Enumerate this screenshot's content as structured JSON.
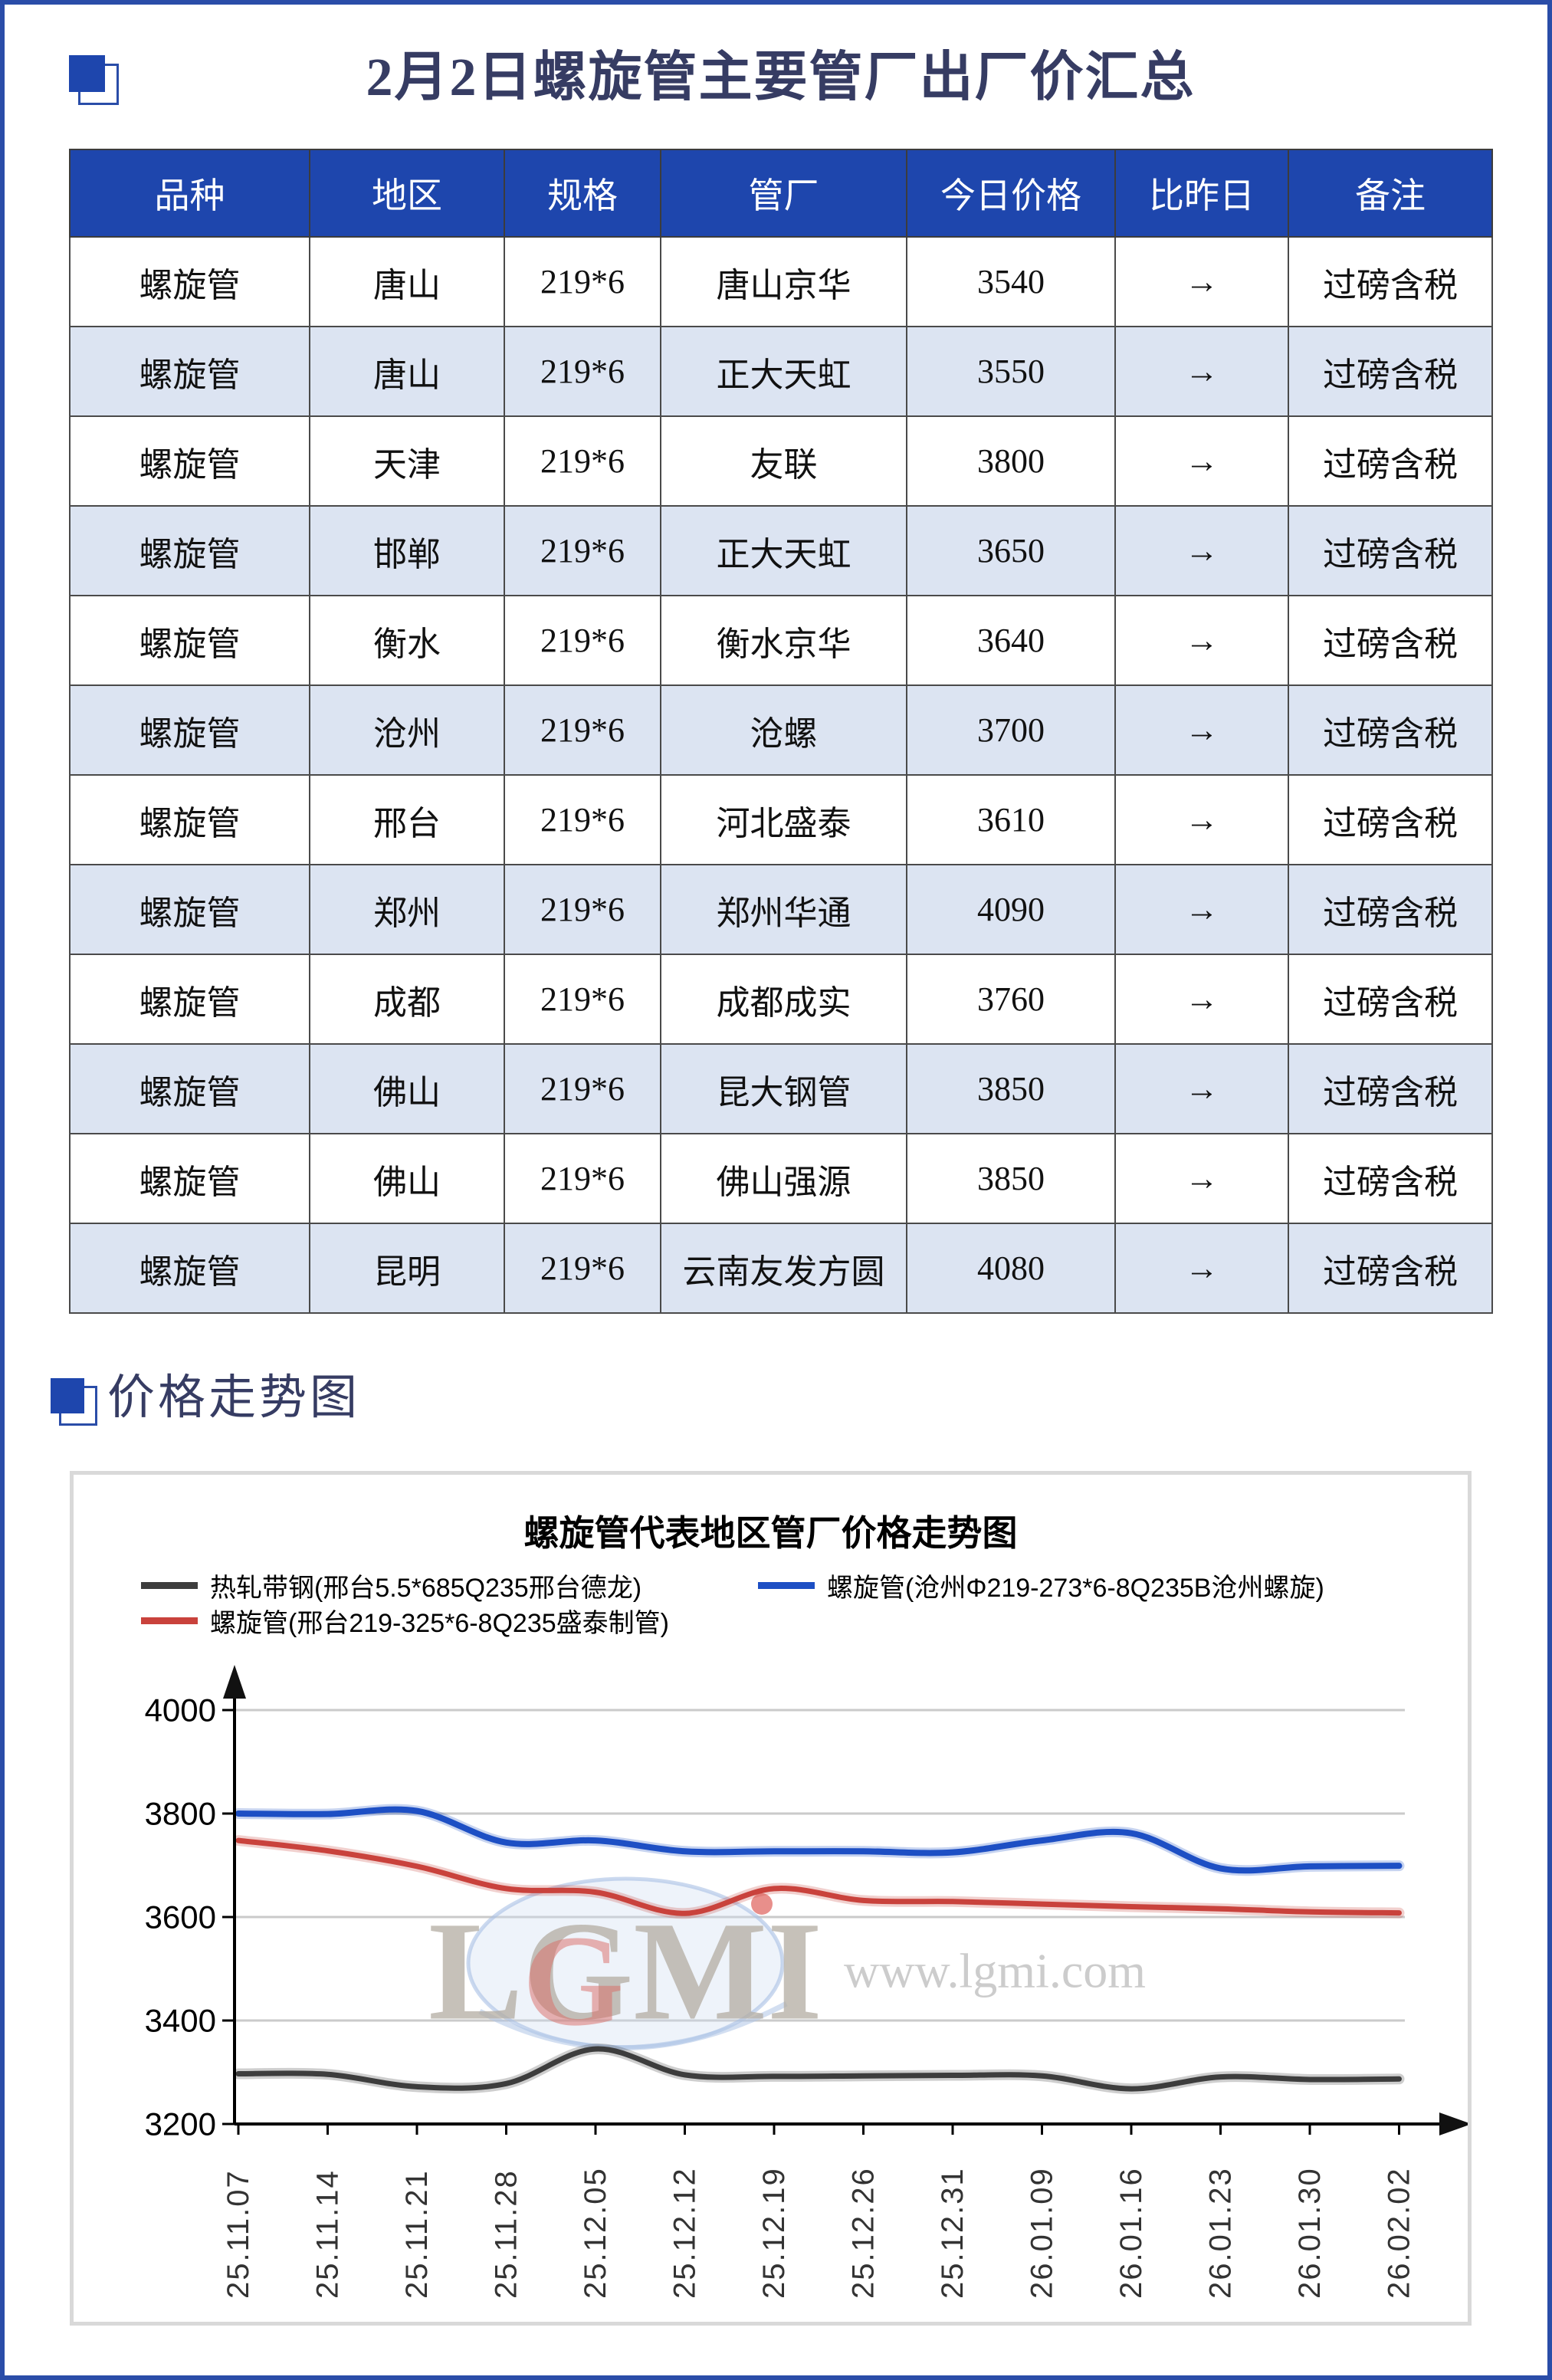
{
  "page": {
    "title": "2月2日螺旋管主要管厂出厂价汇总",
    "section_chart_title": "价格走势图"
  },
  "colors": {
    "accent_blue": "#1e46ad",
    "row_alt_blue": "#dce4f2",
    "page_border_blue": "#2a4da8",
    "title_text": "#363c63",
    "series_black": "#3d3d3d",
    "series_red": "#c9423c",
    "series_blue": "#1d4fc4"
  },
  "table": {
    "headers": [
      "品种",
      "地区",
      "规格",
      "管厂",
      "今日价格",
      "比昨日",
      "备注"
    ],
    "rows": [
      [
        "螺旋管",
        "唐山",
        "219*6",
        "唐山京华",
        "3540",
        "→",
        "过磅含税"
      ],
      [
        "螺旋管",
        "唐山",
        "219*6",
        "正大天虹",
        "3550",
        "→",
        "过磅含税"
      ],
      [
        "螺旋管",
        "天津",
        "219*6",
        "友联",
        "3800",
        "→",
        "过磅含税"
      ],
      [
        "螺旋管",
        "邯郸",
        "219*6",
        "正大天虹",
        "3650",
        "→",
        "过磅含税"
      ],
      [
        "螺旋管",
        "衡水",
        "219*6",
        "衡水京华",
        "3640",
        "→",
        "过磅含税"
      ],
      [
        "螺旋管",
        "沧州",
        "219*6",
        "沧螺",
        "3700",
        "→",
        "过磅含税"
      ],
      [
        "螺旋管",
        "邢台",
        "219*6",
        "河北盛泰",
        "3610",
        "→",
        "过磅含税"
      ],
      [
        "螺旋管",
        "郑州",
        "219*6",
        "郑州华通",
        "4090",
        "→",
        "过磅含税"
      ],
      [
        "螺旋管",
        "成都",
        "219*6",
        "成都成实",
        "3760",
        "→",
        "过磅含税"
      ],
      [
        "螺旋管",
        "佛山",
        "219*6",
        "昆大钢管",
        "3850",
        "→",
        "过磅含税"
      ],
      [
        "螺旋管",
        "佛山",
        "219*6",
        "佛山强源",
        "3850",
        "→",
        "过磅含税"
      ],
      [
        "螺旋管",
        "昆明",
        "219*6",
        "云南友发方圆",
        "4080",
        "→",
        "过磅含税"
      ]
    ]
  },
  "chart": {
    "title": "螺旋管代表地区管厂价格走势图",
    "watermark": {
      "logo": "LGMI",
      "url": "www.lgmi.com"
    },
    "legend": [
      {
        "label": "热轧带钢(邢台5.5*685Q235邢台德龙)",
        "color": "#3d3d3d"
      },
      {
        "label": "螺旋管(沧州Φ219-273*6-8Q235B沧州螺旋)",
        "color": "#1d4fc4"
      },
      {
        "label": "螺旋管(邢台219-325*6-8Q235盛泰制管)",
        "color": "#c9423c"
      }
    ]
  },
  "chart_data": {
    "type": "line",
    "title": "螺旋管代表地区管厂价格走势图",
    "x": [
      "25.11.07",
      "25.11.14",
      "25.11.21",
      "25.11.28",
      "25.12.05",
      "25.12.12",
      "25.12.19",
      "25.12.26",
      "25.12.31",
      "26.01.09",
      "26.01.16",
      "26.01.23",
      "26.01.30",
      "26.02.02"
    ],
    "series": [
      {
        "name": "热轧带钢(邢台5.5*685Q235邢台德龙)",
        "color": "#3d3d3d",
        "values": [
          3297,
          3296,
          3272,
          3278,
          3345,
          3295,
          3292,
          3293,
          3294,
          3293,
          3268,
          3291,
          3286,
          3287
        ]
      },
      {
        "name": "螺旋管(邢台219-325*6-8Q235盛泰制管)",
        "color": "#c9423c",
        "values": [
          3748,
          3728,
          3698,
          3655,
          3648,
          3607,
          3655,
          3632,
          3630,
          3625,
          3620,
          3616,
          3610,
          3608
        ]
      },
      {
        "name": "螺旋管(沧州Φ219-273*6-8Q235B沧州螺旋)",
        "color": "#1d4fc4",
        "values": [
          3800,
          3799,
          3805,
          3744,
          3748,
          3727,
          3727,
          3727,
          3725,
          3748,
          3762,
          3694,
          3698,
          3699
        ]
      }
    ],
    "ylim": [
      3200,
      4000
    ],
    "yticks": [
      3200,
      3400,
      3600,
      3800,
      4000
    ],
    "grid": true,
    "legend_position": "top-left"
  }
}
